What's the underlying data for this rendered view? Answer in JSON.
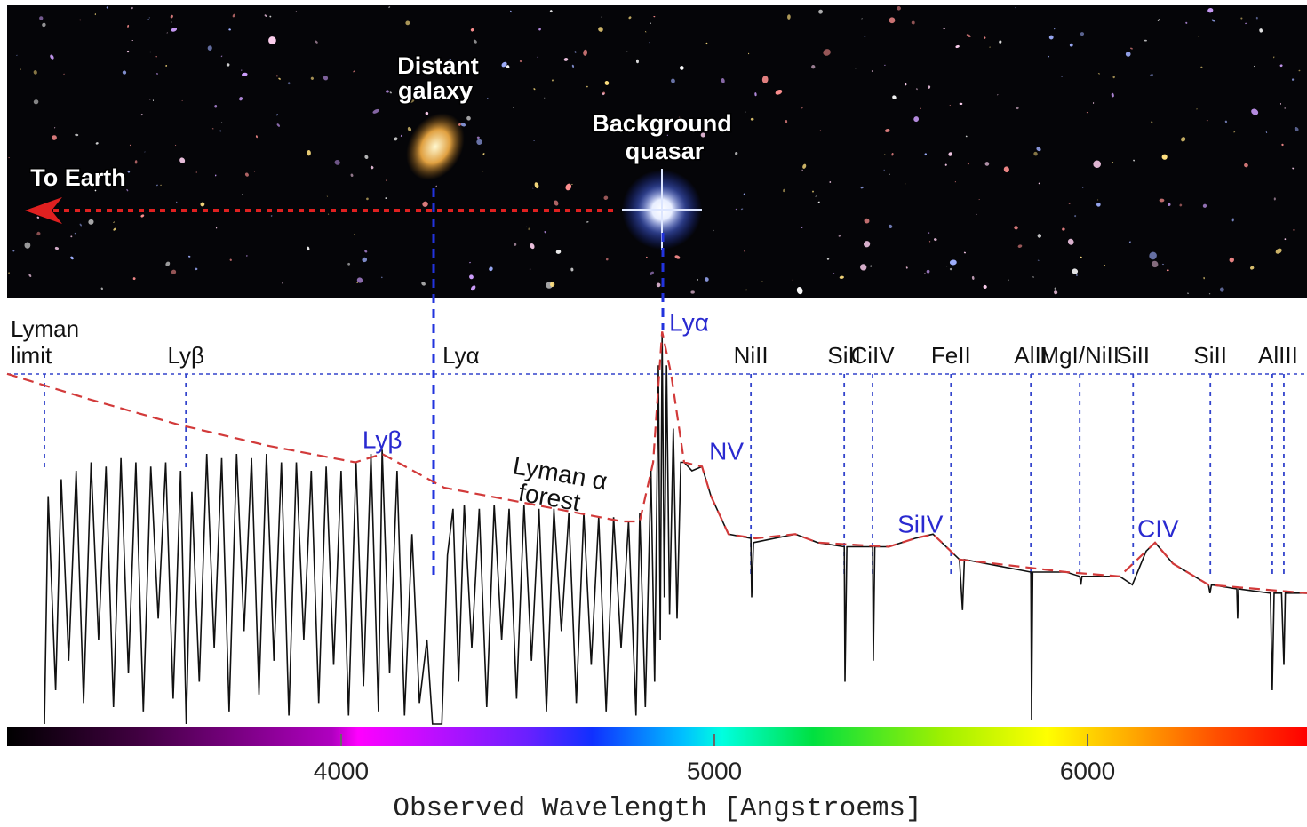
{
  "chart_data": {
    "type": "line",
    "xlabel": "Observed Wavelength [Angstroems]",
    "xlim": [
      3105,
      6588
    ],
    "xticks": [
      4000,
      5000,
      6000
    ],
    "ylim": [
      0,
      100
    ],
    "image_labels": {
      "earth": "To Earth",
      "galaxy": [
        "Distant",
        "galaxy"
      ],
      "quasar": [
        "Background",
        "quasar"
      ]
    },
    "annotation": [
      "Lyman α",
      "forest"
    ],
    "continuum": {
      "color": "#d23a3a",
      "wavelength": [
        3105,
        3324,
        3562,
        3800,
        4038,
        4110,
        4276,
        4515,
        4753,
        4800,
        4836,
        4860,
        4884,
        4919,
        4967,
        4991,
        5038,
        5110,
        5217,
        5277,
        5467,
        5538,
        5586,
        5657,
        5943,
        6086,
        6157,
        6181,
        6229,
        6324,
        6588
      ],
      "flux": [
        83,
        77,
        71,
        66,
        62,
        64,
        56,
        52,
        48,
        48,
        62,
        93,
        83,
        62,
        61,
        54,
        45,
        44,
        45,
        43,
        42,
        44,
        45,
        39,
        36,
        35,
        41,
        43,
        38,
        33,
        31
      ]
    },
    "spectrum": {
      "color": "#111111",
      "wavelength": [
        3205,
        3215,
        3235,
        3250,
        3270,
        3290,
        3310,
        3330,
        3350,
        3370,
        3390,
        3410,
        3430,
        3450,
        3470,
        3490,
        3510,
        3530,
        3550,
        3570,
        3585,
        3600,
        3620,
        3640,
        3660,
        3680,
        3700,
        3720,
        3740,
        3760,
        3780,
        3800,
        3820,
        3840,
        3860,
        3880,
        3900,
        3920,
        3940,
        3960,
        3980,
        4000,
        4020,
        4040,
        4060,
        4080,
        4100,
        4110,
        4130,
        4150,
        4170,
        4190,
        4210,
        4230,
        4245,
        4270,
        4285,
        4300,
        4315,
        4330,
        4350,
        4370,
        4390,
        4410,
        4430,
        4450,
        4470,
        4490,
        4510,
        4530,
        4550,
        4570,
        4590,
        4610,
        4630,
        4650,
        4670,
        4690,
        4710,
        4730,
        4750,
        4770,
        4790,
        4800,
        4815,
        4830,
        4840,
        4850,
        4855,
        4860,
        4866,
        4872,
        4880,
        4890,
        4900,
        4910,
        4919,
        4940,
        4967,
        4991,
        5038,
        5098,
        5100,
        5105,
        5217,
        5277,
        5348,
        5350,
        5355,
        5424,
        5426,
        5430,
        5467,
        5538,
        5586,
        5657,
        5665,
        5670,
        5848,
        5850,
        5853,
        5943,
        5979,
        5982,
        5985,
        6086,
        6120,
        6157,
        6181,
        6229,
        6324,
        6328,
        6332,
        6400,
        6402,
        6405,
        6490,
        6495,
        6500,
        6520,
        6526,
        6530,
        6588
      ],
      "flux": [
        0,
        54,
        8,
        58,
        15,
        60,
        5,
        62,
        20,
        61,
        4,
        63,
        12,
        62,
        3,
        61,
        25,
        62,
        6,
        60,
        0,
        55,
        10,
        64,
        18,
        63,
        3,
        64,
        22,
        63,
        7,
        64,
        15,
        62,
        2,
        62,
        20,
        60,
        5,
        61,
        14,
        60,
        2,
        62,
        9,
        64,
        3,
        65,
        12,
        60,
        2,
        45,
        5,
        20,
        0,
        0,
        40,
        51,
        10,
        52,
        18,
        51,
        4,
        52,
        20,
        51,
        6,
        52,
        15,
        51,
        3,
        51,
        22,
        50,
        5,
        50,
        14,
        49,
        3,
        49,
        18,
        48,
        2,
        50,
        4,
        60,
        10,
        85,
        20,
        92,
        30,
        85,
        26,
        70,
        25,
        62,
        62,
        60,
        61,
        54,
        45,
        44,
        30,
        43,
        45,
        43,
        42,
        10,
        42,
        42,
        15,
        42,
        42,
        44,
        45,
        39,
        27,
        39,
        36,
        1,
        36,
        36,
        35,
        33,
        35,
        35,
        33,
        41,
        43,
        38,
        33,
        31,
        33,
        32,
        25,
        32,
        31,
        8,
        31,
        31,
        14,
        31,
        31
      ]
    },
    "absorbers": [
      {
        "label": [
          "Lyman",
          "limit"
        ],
        "wavelengths": [
          3205
        ]
      },
      {
        "label": [
          "Lyβ"
        ],
        "wavelengths": [
          3584
        ]
      },
      {
        "label": [
          "Lyα"
        ],
        "wavelengths": [
          4248
        ]
      },
      {
        "label": [
          "NiII"
        ],
        "wavelengths": [
          5098
        ]
      },
      {
        "label": [
          "SiII"
        ],
        "wavelengths": [
          5348
        ]
      },
      {
        "label": [
          "CiIV"
        ],
        "wavelengths": [
          5424
        ]
      },
      {
        "label": [
          "FeII"
        ],
        "wavelengths": [
          5634
        ]
      },
      {
        "label": [
          "AlII"
        ],
        "wavelengths": [
          5848
        ]
      },
      {
        "label": [
          "MgI/NiII"
        ],
        "wavelengths": [
          5979
        ]
      },
      {
        "label": [
          "SiII"
        ],
        "wavelengths": [
          6122
        ]
      },
      {
        "label": [
          "SiII"
        ],
        "wavelengths": [
          6329
        ]
      },
      {
        "label": [
          "AlIII"
        ],
        "wavelengths": [
          6495,
          6526
        ]
      }
    ],
    "emission_lines": [
      {
        "label": "Lyβ",
        "wavelength": 4110
      },
      {
        "label": "Lyα",
        "wavelength": 4860
      },
      {
        "label": "NV",
        "wavelength": 4967
      },
      {
        "label": "SiIV",
        "wavelength": 5586
      },
      {
        "label": "CIV",
        "wavelength": 6181
      }
    ]
  }
}
